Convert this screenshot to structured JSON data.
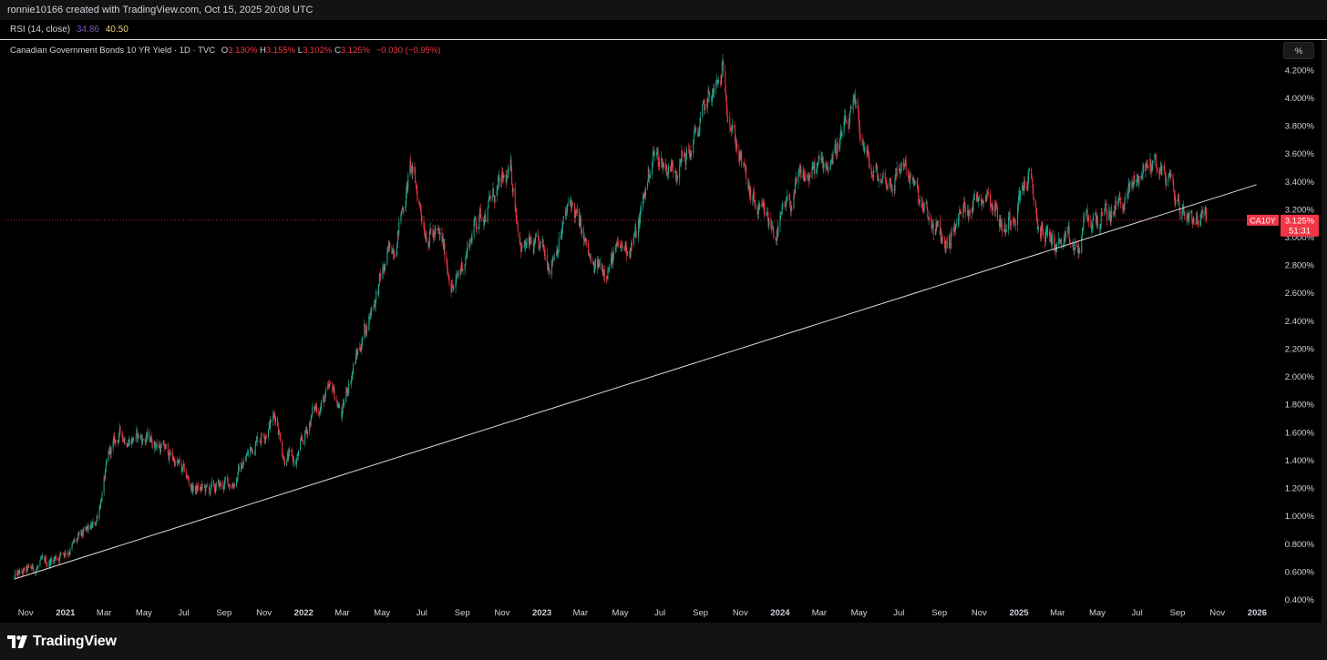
{
  "header": {
    "credit": "ronnie10166 created with TradingView.com, Oct 15, 2025 20:08 UTC"
  },
  "rsi": {
    "label": "RSI (14, close)",
    "value1": "34.86",
    "value2": "40.50",
    "color1": "#7e57c2",
    "color2": "#f0d27a"
  },
  "legend": {
    "title": "Canadian Government Bonds 10 YR Yield · 1D · TVC",
    "o_label": "O",
    "o_value": "3.130%",
    "h_label": "H",
    "h_value": "3.155%",
    "l_label": "L",
    "l_value": "3.102%",
    "c_label": "C",
    "c_value": "3.125%",
    "change": "−0.030 (−0.95%)"
  },
  "toolbar": {
    "unit_button": "%"
  },
  "price_tag": {
    "symbol": "CA10Y",
    "price": "3.125%",
    "countdown": "51:31",
    "color": "#f23645"
  },
  "footer": {
    "logo_text": "TradingView"
  },
  "chart_data": {
    "type": "candlestick",
    "title": "Canadian Government Bonds 10 YR Yield",
    "interval": "1D",
    "source": "TVC",
    "y_unit": "%",
    "ylim": [
      0.4,
      4.3
    ],
    "y_ticks": [
      "0.400%",
      "0.600%",
      "0.800%",
      "1.000%",
      "1.200%",
      "1.400%",
      "1.600%",
      "1.800%",
      "2.000%",
      "2.200%",
      "2.400%",
      "2.600%",
      "2.800%",
      "3.000%",
      "3.200%",
      "3.400%",
      "3.600%",
      "3.800%",
      "4.000%",
      "4.200%"
    ],
    "x_tick_labels": [
      "Nov",
      "2021",
      "Mar",
      "May",
      "Jul",
      "Sep",
      "Nov",
      "2022",
      "Mar",
      "May",
      "Jul",
      "Sep",
      "Nov",
      "2023",
      "Mar",
      "May",
      "Jul",
      "Sep",
      "Nov",
      "2024",
      "Mar",
      "May",
      "Jul",
      "Sep",
      "Nov",
      "2025",
      "Mar",
      "May",
      "Jul",
      "Sep",
      "Nov",
      "2026"
    ],
    "x_tick_bold": [
      false,
      true,
      false,
      false,
      false,
      false,
      false,
      true,
      false,
      false,
      false,
      false,
      false,
      true,
      false,
      false,
      false,
      false,
      false,
      true,
      false,
      false,
      false,
      false,
      false,
      true,
      false,
      false,
      false,
      false,
      false,
      true
    ],
    "x": [
      "2020-10-15",
      "2020-12-01",
      "2021-01-15",
      "2021-02-15",
      "2021-03-10",
      "2021-03-25",
      "2021-05-15",
      "2021-06-15",
      "2021-07-15",
      "2021-08-10",
      "2021-09-15",
      "2021-10-20",
      "2021-11-20",
      "2021-12-01",
      "2021-12-20",
      "2022-01-15",
      "2022-02-15",
      "2022-03-01",
      "2022-03-10",
      "2022-04-15",
      "2022-05-10",
      "2022-05-25",
      "2022-06-14",
      "2022-07-05",
      "2022-08-01",
      "2022-08-20",
      "2022-09-20",
      "2022-10-20",
      "2022-11-15",
      "2022-12-01",
      "2023-01-15",
      "2023-02-15",
      "2023-03-01",
      "2023-03-20",
      "2023-04-20",
      "2023-05-25",
      "2023-06-20",
      "2023-07-15",
      "2023-08-15",
      "2023-09-15",
      "2023-10-01",
      "2023-10-05",
      "2023-10-20",
      "2023-11-15",
      "2023-12-01",
      "2023-12-27",
      "2024-02-01",
      "2024-03-15",
      "2024-04-25",
      "2024-05-20",
      "2024-06-20",
      "2024-07-10",
      "2024-08-05",
      "2024-09-10",
      "2024-10-15",
      "2024-11-15",
      "2024-12-10",
      "2025-01-15",
      "2025-02-01",
      "2025-03-05",
      "2025-04-03",
      "2025-04-10",
      "2025-05-15",
      "2025-06-15",
      "2025-07-10",
      "2025-07-25",
      "2025-08-20",
      "2025-09-05",
      "2025-09-20",
      "2025-10-15"
    ],
    "series": [
      {
        "values": [
          0.56,
          0.66,
          0.8,
          0.93,
          1.45,
          1.58,
          1.55,
          1.42,
          1.2,
          1.18,
          1.25,
          1.55,
          1.73,
          1.45,
          1.38,
          1.75,
          1.9,
          1.72,
          1.95,
          2.5,
          2.85,
          3.05,
          3.5,
          3.1,
          2.95,
          2.62,
          3.1,
          3.3,
          3.45,
          2.95,
          2.85,
          3.25,
          3.05,
          2.75,
          2.85,
          3.0,
          3.6,
          3.5,
          3.6,
          4.0,
          4.1,
          4.18,
          3.8,
          3.3,
          3.15,
          3.05,
          3.4,
          3.55,
          3.9,
          3.45,
          3.4,
          3.55,
          3.2,
          2.95,
          3.25,
          3.35,
          3.05,
          3.45,
          3.05,
          2.95,
          2.9,
          3.1,
          3.15,
          3.3,
          3.48,
          3.55,
          3.42,
          3.2,
          3.18,
          3.125
        ]
      }
    ],
    "trendline": {
      "start": [
        "2020-10-15",
        0.55
      ],
      "end": [
        "2025-12-31",
        3.38
      ]
    },
    "last_price": 3.125,
    "grid": false
  }
}
